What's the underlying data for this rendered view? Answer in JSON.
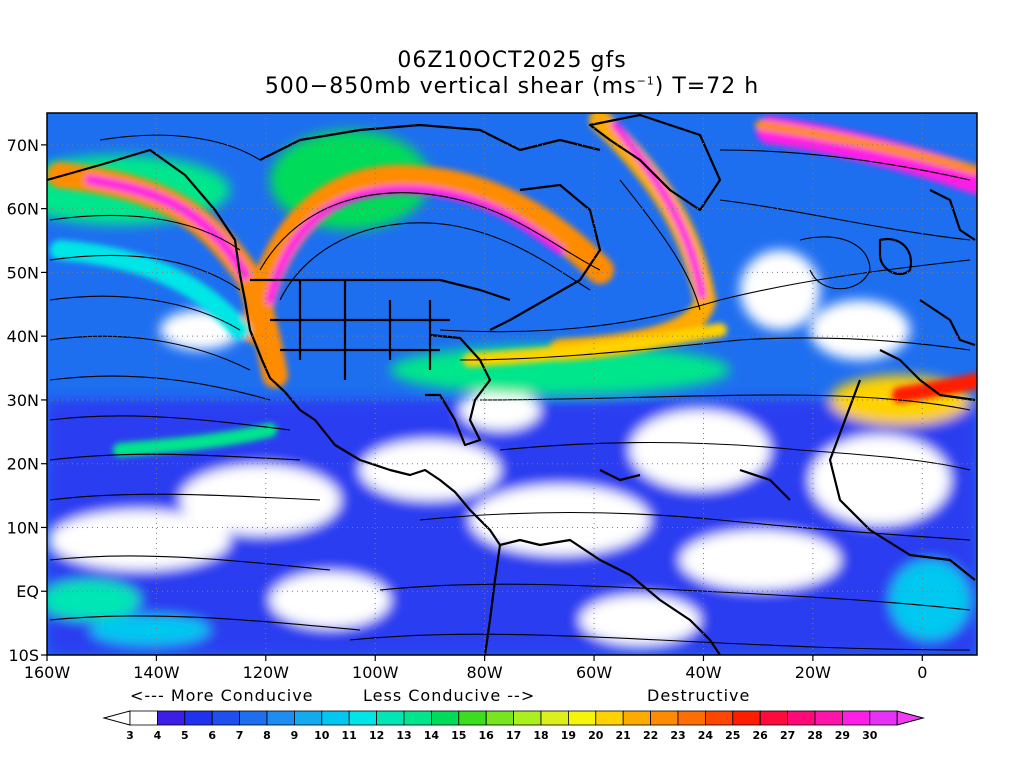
{
  "title": {
    "line1": "06Z10OCT2025 gfs",
    "line2_prefix": "500−850mb vertical shear (ms",
    "line2_sup": "−1",
    "line2_suffix": ") T=72 h"
  },
  "map": {
    "lat_labels": [
      "70N",
      "60N",
      "50N",
      "40N",
      "30N",
      "20N",
      "10N",
      "EQ",
      "10S"
    ],
    "lat_values": [
      70,
      60,
      50,
      40,
      30,
      20,
      10,
      0,
      -10
    ],
    "lon_labels": [
      "160W",
      "140W",
      "120W",
      "100W",
      "80W",
      "60W",
      "40W",
      "20W",
      "0"
    ],
    "lon_values": [
      -160,
      -140,
      -120,
      -100,
      -80,
      -60,
      -40,
      -20,
      0
    ],
    "lat_range": [
      -10,
      75
    ],
    "lon_range": [
      -160,
      10
    ],
    "grid": true
  },
  "annotations": {
    "more_conducive": "<--- More Conducive",
    "less_conducive": "Less Conducive -->",
    "destructive": "Destructive"
  },
  "colorbar": {
    "labels": [
      "3",
      "4",
      "5",
      "6",
      "7",
      "8",
      "9",
      "10",
      "11",
      "12",
      "13",
      "14",
      "15",
      "16",
      "17",
      "18",
      "19",
      "20",
      "21",
      "22",
      "23",
      "24",
      "25",
      "26",
      "27",
      "28",
      "29",
      "30"
    ],
    "colors": [
      "#ffffff",
      "#3c1ee6",
      "#1e32f0",
      "#1e50f0",
      "#1e6ef0",
      "#1e8cf0",
      "#14aaf0",
      "#00c8f0",
      "#00e6e6",
      "#00e6b4",
      "#00e68c",
      "#00dc5a",
      "#3cdc1e",
      "#78e61e",
      "#aaf01e",
      "#dcf01e",
      "#f5f50a",
      "#ffd200",
      "#ffaa00",
      "#ff8c00",
      "#ff6e00",
      "#ff4600",
      "#ff1e00",
      "#ff0a3c",
      "#ff0a78",
      "#ff14aa",
      "#ff1ee6",
      "#e632f5"
    ]
  }
}
